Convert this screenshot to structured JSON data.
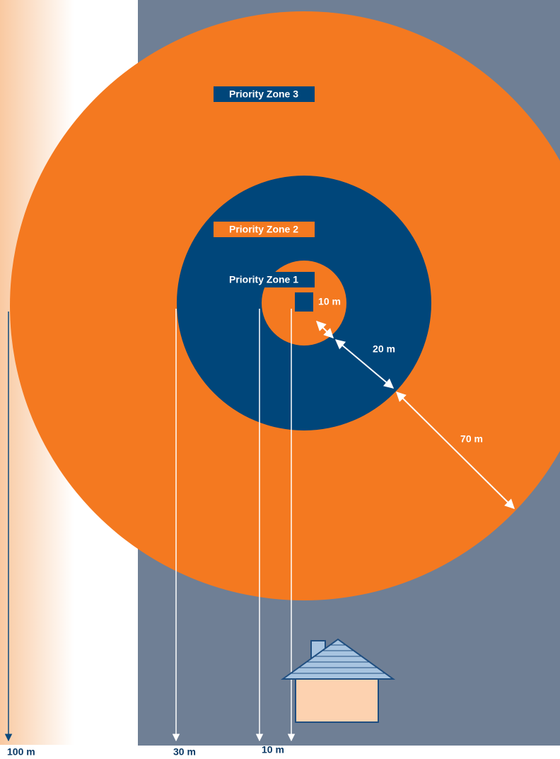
{
  "zone_labels": [
    "Priority Zone 3",
    "Priority Zone 2",
    "Priority Zone 1"
  ],
  "ring_widths": [
    "10 m",
    "20 m",
    "70 m"
  ],
  "distance_markers": [
    "100 m",
    "30 m",
    "10 m"
  ]
}
